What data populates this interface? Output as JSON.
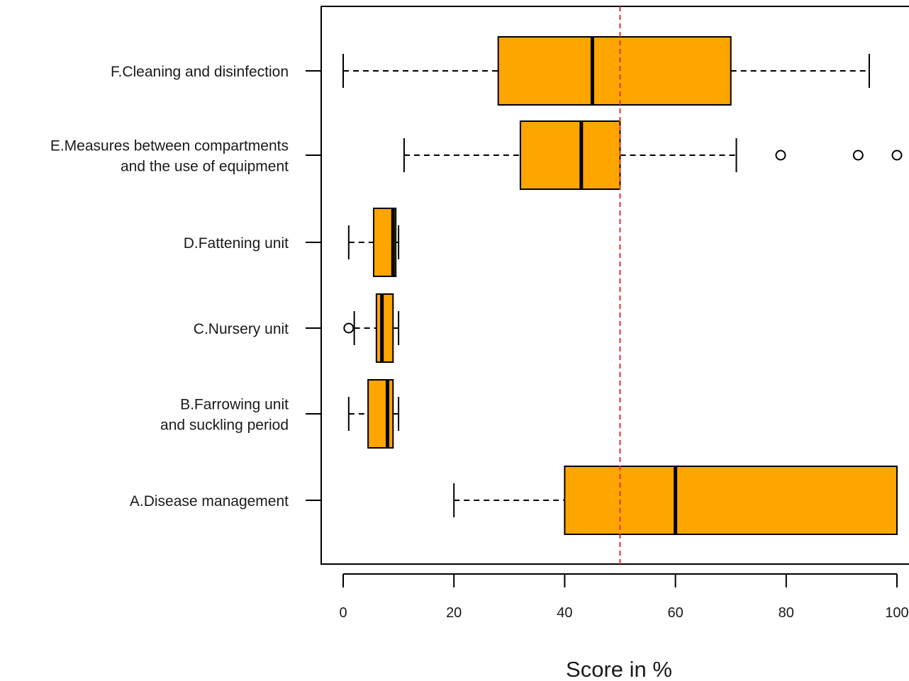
{
  "chart_data": {
    "type": "boxplot",
    "orientation": "horizontal",
    "xlabel": "Score in %",
    "xlim": [
      -4,
      100
    ],
    "x_ticks": [
      0,
      20,
      40,
      60,
      80,
      100
    ],
    "reference_line": {
      "value": 50,
      "color": "#e03030",
      "style": "dashed"
    },
    "box_color": "#ffa500",
    "categories": [
      {
        "label_lines": [
          "F.Cleaning and disinfection"
        ],
        "whisker_low": 0,
        "q1": 28,
        "median": 45,
        "q3": 70,
        "whisker_high": 95,
        "outliers": []
      },
      {
        "label_lines": [
          "E.Measures between compartments",
          "and the use of equipment"
        ],
        "whisker_low": 11,
        "q1": 32,
        "median": 43,
        "q3": 50,
        "whisker_high": 71,
        "outliers": [
          79,
          93,
          100
        ]
      },
      {
        "label_lines": [
          "D.Fattening unit"
        ],
        "whisker_low": 1,
        "q1": 5.5,
        "median": 9,
        "q3": 9.5,
        "whisker_high": 10,
        "outliers": []
      },
      {
        "label_lines": [
          "C.Nursery unit"
        ],
        "whisker_low": 2,
        "q1": 6,
        "median": 7,
        "q3": 9,
        "whisker_high": 10,
        "outliers": [
          1
        ]
      },
      {
        "label_lines": [
          "B.Farrowing unit",
          "and suckling period"
        ],
        "whisker_low": 1,
        "q1": 4.5,
        "median": 8,
        "q3": 9,
        "whisker_high": 10,
        "outliers": []
      },
      {
        "label_lines": [
          "A.Disease management"
        ],
        "whisker_low": 20,
        "q1": 40,
        "median": 60,
        "q3": 100,
        "whisker_high": 100,
        "outliers": []
      }
    ]
  }
}
